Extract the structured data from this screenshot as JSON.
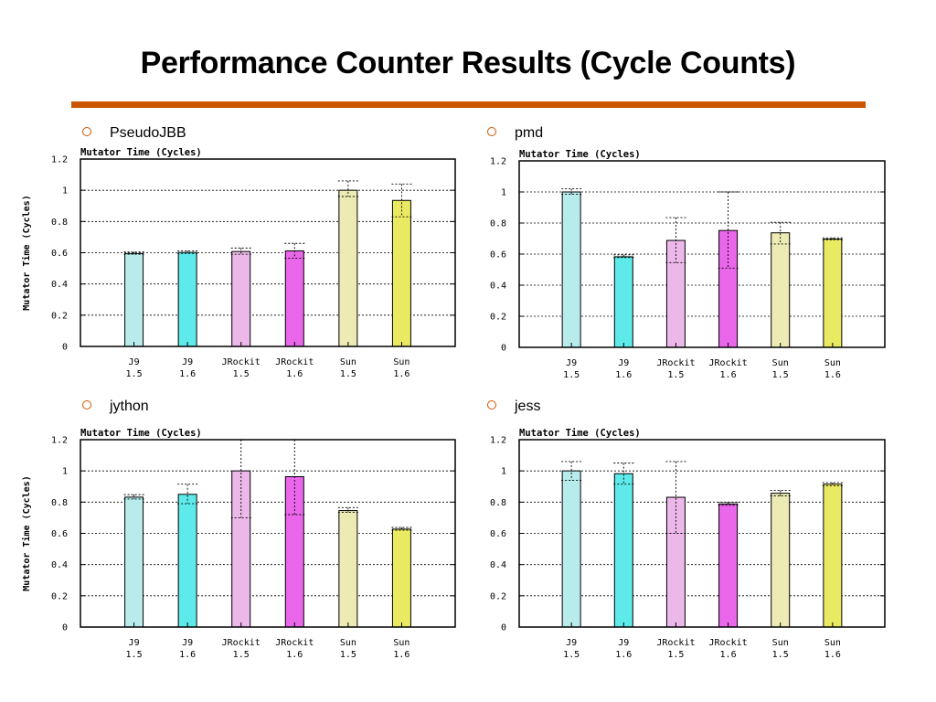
{
  "slide": {
    "title": "Performance Counter Results (Cycle Counts)",
    "accent_color": "#cc5500"
  },
  "colors": [
    "#b8ecec",
    "#5eeaea",
    "#ecb8ea",
    "#ea66ea",
    "#ecebb4",
    "#eaea62"
  ],
  "charts": [
    {
      "bullet": "PseudoJBB",
      "chart_data": {
        "type": "bar",
        "title": "Mutator Time (Cycles)",
        "ylabel": "Mutator Time (Cycles)",
        "xlabel": "",
        "ylim": [
          0,
          1.2
        ],
        "yticks": [
          "0",
          "0.2",
          "0.4",
          "0.6",
          "0.8",
          "1",
          "1.2"
        ],
        "categories": [
          [
            "J9",
            "1.5"
          ],
          [
            "J9",
            "1.6"
          ],
          [
            "JRockit",
            "1.5"
          ],
          [
            "JRockit",
            "1.6"
          ],
          [
            "Sun",
            "1.5"
          ],
          [
            "Sun",
            "1.6"
          ]
        ],
        "values": [
          0.595,
          0.602,
          0.608,
          0.612,
          1.0,
          0.935
        ],
        "error_low": [
          0.59,
          0.595,
          0.59,
          0.565,
          0.96,
          0.83
        ],
        "error_high": [
          0.605,
          0.612,
          0.63,
          0.66,
          1.06,
          1.04
        ]
      }
    },
    {
      "bullet": "pmd",
      "chart_data": {
        "type": "bar",
        "title": "Mutator Time (Cycles)",
        "ylabel": "",
        "xlabel": "",
        "ylim": [
          0,
          1.2
        ],
        "yticks": [
          "0",
          "0.2",
          "0.4",
          "0.6",
          "0.8",
          "1",
          "1.2"
        ],
        "categories": [
          [
            "J9",
            "1.5"
          ],
          [
            "J9",
            "1.6"
          ],
          [
            "JRockit",
            "1.5"
          ],
          [
            "JRockit",
            "1.6"
          ],
          [
            "Sun",
            "1.5"
          ],
          [
            "Sun",
            "1.6"
          ]
        ],
        "values": [
          1.0,
          0.583,
          0.688,
          0.752,
          0.737,
          0.697
        ],
        "error_low": [
          0.985,
          0.578,
          0.545,
          0.51,
          0.665,
          0.692
        ],
        "error_high": [
          1.02,
          0.595,
          0.835,
          1.0,
          0.805,
          0.705
        ]
      }
    },
    {
      "bullet": "jython",
      "chart_data": {
        "type": "bar",
        "title": "Mutator Time (Cycles)",
        "ylabel": "Mutator Time (Cycles)",
        "xlabel": "",
        "ylim": [
          0,
          1.2
        ],
        "yticks": [
          "0",
          "0.2",
          "0.4",
          "0.6",
          "0.8",
          "1",
          "1.2"
        ],
        "categories": [
          [
            "J9",
            "1.5"
          ],
          [
            "J9",
            "1.6"
          ],
          [
            "JRockit",
            "1.5"
          ],
          [
            "JRockit",
            "1.6"
          ],
          [
            "Sun",
            "1.5"
          ],
          [
            "Sun",
            "1.6"
          ]
        ],
        "values": [
          0.832,
          0.85,
          1.0,
          0.963,
          0.746,
          0.627
        ],
        "error_low": [
          0.82,
          0.79,
          0.7,
          0.72,
          0.735,
          0.62
        ],
        "error_high": [
          0.848,
          0.915,
          1.2,
          1.2,
          0.765,
          0.638
        ]
      }
    },
    {
      "bullet": "jess",
      "chart_data": {
        "type": "bar",
        "title": "Mutator Time (Cycles)",
        "ylabel": "",
        "xlabel": "",
        "ylim": [
          0,
          1.2
        ],
        "yticks": [
          "0",
          "0.2",
          "0.4",
          "0.6",
          "0.8",
          "1",
          "1.2"
        ],
        "categories": [
          [
            "J9",
            "1.5"
          ],
          [
            "J9",
            "1.6"
          ],
          [
            "JRockit",
            "1.5"
          ],
          [
            "JRockit",
            "1.6"
          ],
          [
            "Sun",
            "1.5"
          ],
          [
            "Sun",
            "1.6"
          ]
        ],
        "values": [
          1.0,
          0.982,
          0.831,
          0.788,
          0.857,
          0.915
        ],
        "error_low": [
          0.94,
          0.915,
          0.6,
          0.78,
          0.84,
          0.905
        ],
        "error_high": [
          1.06,
          1.05,
          1.06,
          0.798,
          0.875,
          0.925
        ]
      }
    }
  ]
}
